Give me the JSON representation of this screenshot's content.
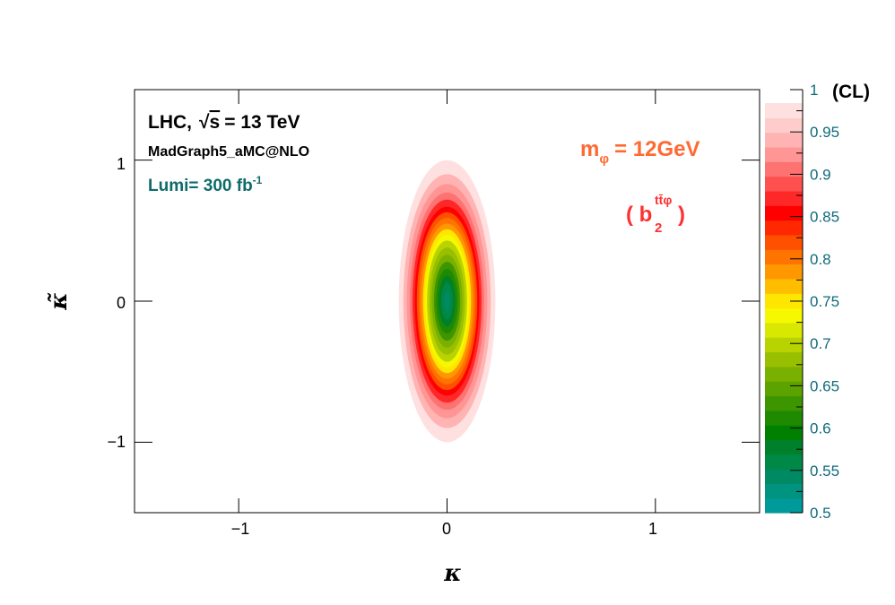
{
  "chart_data": {
    "type": "heatmap",
    "title": "",
    "xlabel": "κ",
    "ylabel": "κ̃",
    "xlim": [
      -1.5,
      1.5
    ],
    "ylim": [
      -1.5,
      1.5
    ],
    "x_ticks": [
      -1,
      0,
      1
    ],
    "x_tick_labels": [
      "−1",
      "0",
      "1"
    ],
    "y_ticks": [
      -1,
      0,
      1
    ],
    "y_tick_labels": [
      "−1",
      "0",
      "1"
    ],
    "z_label": "(CL)",
    "z_range": [
      0.5,
      1.0
    ],
    "z_ticks": [
      0.5,
      0.55,
      0.6,
      0.65,
      0.7,
      0.75,
      0.8,
      0.85,
      0.9,
      0.95,
      1.0
    ],
    "z_tick_labels": [
      "0.5",
      "0.55",
      "0.6",
      "0.65",
      "0.7",
      "0.75",
      "0.8",
      "0.85",
      "0.9",
      "0.95",
      "1"
    ],
    "grid": false,
    "contours": {
      "center": [
        0,
        0
      ],
      "cl_levels": [
        0.5,
        0.525,
        0.55,
        0.575,
        0.6,
        0.625,
        0.65,
        0.675,
        0.7,
        0.725,
        0.75,
        0.775,
        0.8,
        0.825,
        0.85,
        0.875,
        0.9,
        0.925,
        0.95,
        0.975
      ],
      "kappa_halfwidth": [
        0.0,
        0.015,
        0.028,
        0.04,
        0.052,
        0.063,
        0.074,
        0.085,
        0.096,
        0.105,
        0.115,
        0.125,
        0.135,
        0.145,
        0.155,
        0.166,
        0.178,
        0.193,
        0.21,
        0.232
      ],
      "kappatilde_halfheight": [
        0.0,
        0.07,
        0.13,
        0.18,
        0.23,
        0.28,
        0.33,
        0.38,
        0.43,
        0.47,
        0.51,
        0.55,
        0.59,
        0.63,
        0.67,
        0.72,
        0.77,
        0.83,
        0.9,
        1.0
      ]
    },
    "colorbar_colors": [
      "#009a9a",
      "#00937f",
      "#008a63",
      "#008847",
      "#00802b",
      "#008000",
      "#1f8a00",
      "#3d9600",
      "#5ca300",
      "#7ab000",
      "#99c000",
      "#b8d300",
      "#d8e800",
      "#f5f800",
      "#ffe600",
      "#ffbd00",
      "#ff9800",
      "#ff7400",
      "#ff5000",
      "#ff2800",
      "#ff0000",
      "#ff2828",
      "#ff5050",
      "#ff7272",
      "#ff9595",
      "#ffb3b3",
      "#ffcccc",
      "#ffe0e0"
    ],
    "annotations": {
      "collider": "LHC,",
      "sqrt_sym": "√",
      "sqrt_s": "s",
      "energy": "= 13 TeV",
      "generator": "MadGraph5_aMC@NLO",
      "lumi": "Lumi= 300 fb",
      "lumi_sup": "-1",
      "mass_m": "m",
      "mass_sub": "φ",
      "mass_val": "= 12GeV",
      "coupling_open": "( b",
      "coupling_sub": "2",
      "coupling_sup": "tt̄φ",
      "coupling_close": ")"
    },
    "colors": {
      "mass_text": "#ff6a33",
      "coupling_text": "#ff3030",
      "lumi_text": "#0e6b6b",
      "colorbar_text": "#0e6b7b"
    }
  }
}
